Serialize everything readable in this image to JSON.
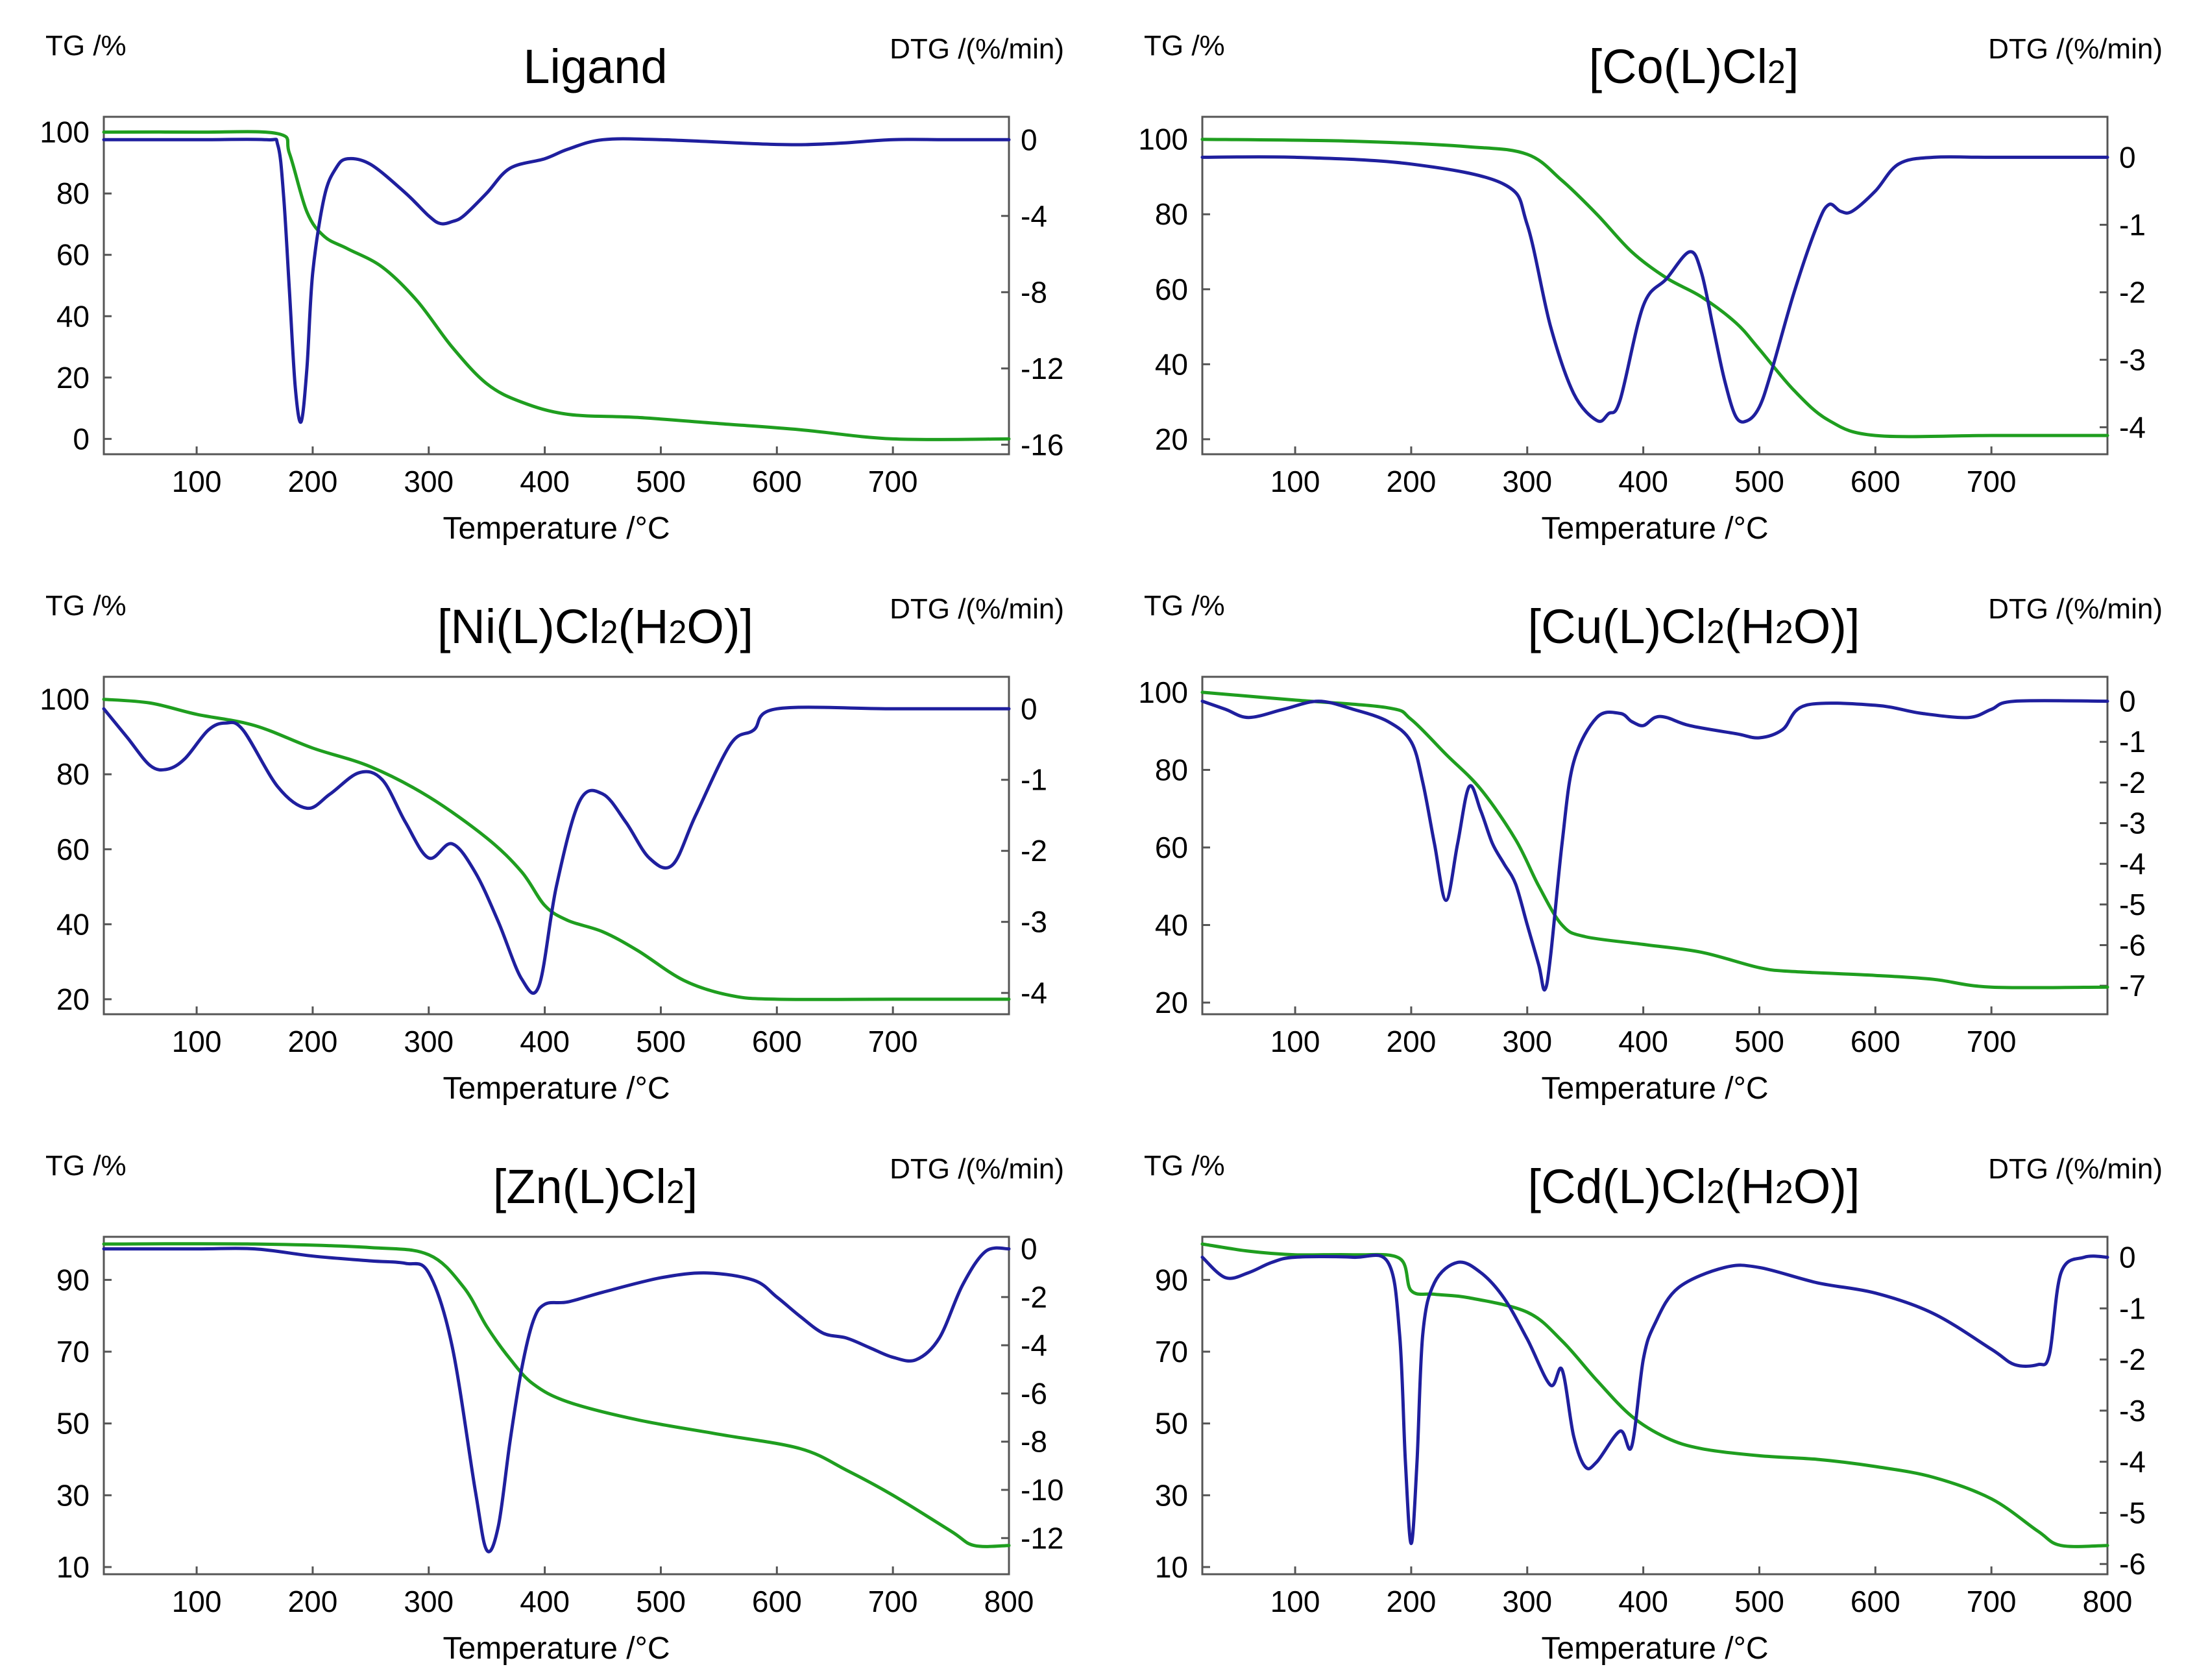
{
  "figure": {
    "x_axis_label": "Temperature /°C",
    "left_axis_label": "TG /%",
    "right_axis_label": "DTG /(%/min)",
    "tg_color": "#1f9e1f",
    "dtg_color": "#1f1f9e",
    "frame_color": "#555555"
  },
  "chart_data": [
    {
      "type": "line",
      "title": "Ligand",
      "title_parts": [
        {
          "text": "Ligand"
        }
      ],
      "xlabel": "Temperature /°C",
      "ylabel": "TG /%",
      "y2label": "DTG /(%/min)",
      "xlim": [
        20,
        800
      ],
      "ylim": [
        -5,
        105
      ],
      "y2lim": [
        -16.5,
        1.2
      ],
      "xticks": [
        100,
        200,
        300,
        400,
        500,
        600,
        700
      ],
      "yticks": [
        0,
        20,
        40,
        60,
        80,
        100
      ],
      "y2ticks": [
        0,
        -4,
        -8,
        -12,
        -16
      ],
      "y2ticklabels": [
        "0",
        "-4",
        "-8",
        "-12",
        "-16"
      ],
      "series": [
        {
          "name": "TG",
          "axis": "left",
          "x": [
            20,
            100,
            170,
            180,
            195,
            210,
            230,
            260,
            290,
            320,
            350,
            380,
            420,
            480,
            550,
            620,
            700,
            800
          ],
          "y": [
            100,
            100,
            99.5,
            93,
            74,
            66,
            62,
            56,
            45,
            30,
            18,
            12,
            8,
            7,
            5,
            3,
            0,
            0
          ]
        },
        {
          "name": "DTG",
          "axis": "right",
          "x": [
            20,
            100,
            160,
            170,
            175,
            180,
            185,
            190,
            195,
            200,
            210,
            220,
            230,
            250,
            280,
            300,
            310,
            320,
            330,
            350,
            370,
            400,
            420,
            450,
            500,
            600,
            650,
            700,
            750,
            800
          ],
          "y": [
            0,
            0,
            0,
            -0.3,
            -3,
            -8,
            -13,
            -14.8,
            -12,
            -7,
            -3,
            -1.5,
            -1,
            -1.3,
            -2.8,
            -4,
            -4.4,
            -4.3,
            -4,
            -2.8,
            -1.5,
            -1,
            -0.5,
            0,
            0,
            -0.25,
            -0.2,
            0,
            0,
            0
          ]
        }
      ]
    },
    {
      "type": "line",
      "title": "[Co(L)Cl2]",
      "title_parts": [
        {
          "text": "[Co(L)Cl"
        },
        {
          "text": "2",
          "sub": true
        },
        {
          "text": "]"
        }
      ],
      "xlabel": "Temperature /°C",
      "ylabel": "TG /%",
      "y2label": "DTG /(%/min)",
      "xlim": [
        20,
        800
      ],
      "ylim": [
        16,
        106
      ],
      "y2lim": [
        -4.4,
        0.6
      ],
      "xticks": [
        100,
        200,
        300,
        400,
        500,
        600,
        700
      ],
      "yticks": [
        20,
        40,
        60,
        80,
        100
      ],
      "y2ticks": [
        0,
        -1,
        -2,
        -3,
        -4
      ],
      "y2ticklabels": [
        "0",
        "-1",
        "-2",
        "-3",
        "-4"
      ],
      "series": [
        {
          "name": "TG",
          "axis": "left",
          "x": [
            20,
            150,
            250,
            300,
            330,
            360,
            390,
            420,
            450,
            480,
            500,
            530,
            560,
            600,
            700,
            800
          ],
          "y": [
            100,
            99.5,
            98,
            96,
            89,
            80,
            70,
            63,
            58,
            51,
            44,
            33,
            25,
            21,
            21,
            21
          ]
        },
        {
          "name": "DTG",
          "axis": "right",
          "x": [
            20,
            100,
            200,
            280,
            300,
            320,
            340,
            360,
            370,
            380,
            400,
            420,
            440,
            450,
            460,
            470,
            480,
            490,
            500,
            510,
            530,
            550,
            560,
            570,
            580,
            600,
            620,
            650,
            700,
            800
          ],
          "y": [
            0,
            0,
            -0.1,
            -0.4,
            -1,
            -2.5,
            -3.5,
            -3.9,
            -3.8,
            -3.6,
            -2.2,
            -1.8,
            -1.4,
            -1.7,
            -2.5,
            -3.3,
            -3.85,
            -3.9,
            -3.7,
            -3.2,
            -2,
            -1,
            -0.7,
            -0.8,
            -0.8,
            -0.5,
            -0.1,
            0,
            0,
            0
          ]
        }
      ]
    },
    {
      "type": "line",
      "title": "[Ni(L)Cl2(H2O)]",
      "title_parts": [
        {
          "text": "[Ni(L)Cl"
        },
        {
          "text": "2",
          "sub": true
        },
        {
          "text": "(H"
        },
        {
          "text": "2",
          "sub": true
        },
        {
          "text": "O)]"
        }
      ],
      "xlabel": "Temperature /°C",
      "ylabel": "TG /%",
      "y2label": "DTG /(%/min)",
      "xlim": [
        20,
        800
      ],
      "ylim": [
        16,
        106
      ],
      "y2lim": [
        -4.3,
        0.45
      ],
      "xticks": [
        100,
        200,
        300,
        400,
        500,
        600,
        700
      ],
      "yticks": [
        20,
        40,
        60,
        80,
        100
      ],
      "y2ticks": [
        0,
        -1,
        -2,
        -3,
        -4
      ],
      "y2ticklabels": [
        "0",
        "-1",
        "-2",
        "-3",
        "-4"
      ],
      "series": [
        {
          "name": "TG",
          "axis": "left",
          "x": [
            20,
            60,
            100,
            150,
            200,
            250,
            300,
            350,
            380,
            400,
            420,
            450,
            480,
            520,
            560,
            600,
            700,
            800
          ],
          "y": [
            100,
            99,
            96,
            93,
            87,
            82,
            74,
            63,
            54,
            45,
            41,
            38,
            33,
            25,
            21,
            20,
            20,
            20
          ]
        },
        {
          "name": "DTG",
          "axis": "right",
          "x": [
            20,
            40,
            60,
            75,
            90,
            110,
            125,
            140,
            170,
            195,
            215,
            240,
            260,
            280,
            300,
            320,
            340,
            360,
            380,
            395,
            410,
            430,
            450,
            470,
            490,
            510,
            530,
            560,
            580,
            600,
            700,
            800
          ],
          "y": [
            0,
            -0.4,
            -0.8,
            -0.85,
            -0.7,
            -0.3,
            -0.2,
            -0.3,
            -1.1,
            -1.4,
            -1.2,
            -0.9,
            -1,
            -1.6,
            -2.1,
            -1.9,
            -2.3,
            -3,
            -3.8,
            -3.9,
            -2.5,
            -1.3,
            -1.2,
            -1.6,
            -2.1,
            -2.2,
            -1.5,
            -0.5,
            -0.3,
            0,
            0,
            0
          ]
        }
      ]
    },
    {
      "type": "line",
      "title": "[Cu(L)Cl2(H2O)]",
      "title_parts": [
        {
          "text": "[Cu(L)Cl"
        },
        {
          "text": "2",
          "sub": true
        },
        {
          "text": "(H"
        },
        {
          "text": "2",
          "sub": true
        },
        {
          "text": "O)]"
        }
      ],
      "xlabel": "Temperature /°C",
      "ylabel": "TG /%",
      "y2label": "DTG /(%/min)",
      "xlim": [
        20,
        800
      ],
      "ylim": [
        17,
        104
      ],
      "y2lim": [
        -7.7,
        0.6
      ],
      "xticks": [
        100,
        200,
        300,
        400,
        500,
        600,
        700
      ],
      "yticks": [
        20,
        40,
        60,
        80,
        100
      ],
      "y2ticks": [
        0,
        -1,
        -2,
        -3,
        -4,
        -5,
        -6,
        -7
      ],
      "y2ticklabels": [
        "0",
        "-1",
        "-2",
        "-3",
        "-4",
        "-5",
        "-6",
        "-7"
      ],
      "series": [
        {
          "name": "TG",
          "axis": "left",
          "x": [
            20,
            100,
            180,
            200,
            230,
            260,
            290,
            310,
            330,
            350,
            400,
            450,
            500,
            530,
            600,
            650,
            700,
            800
          ],
          "y": [
            100,
            98,
            96,
            93,
            84,
            75,
            62,
            50,
            40,
            37,
            35,
            33,
            29,
            28,
            27,
            26,
            24,
            24
          ]
        },
        {
          "name": "DTG",
          "axis": "right",
          "x": [
            20,
            40,
            60,
            90,
            120,
            150,
            180,
            200,
            210,
            220,
            230,
            240,
            250,
            260,
            270,
            280,
            290,
            300,
            310,
            315,
            320,
            330,
            340,
            360,
            380,
            390,
            400,
            410,
            420,
            440,
            480,
            500,
            520,
            540,
            600,
            640,
            680,
            700,
            720,
            800
          ],
          "y": [
            0,
            -0.2,
            -0.4,
            -0.2,
            0,
            -0.2,
            -0.5,
            -1,
            -2,
            -3.5,
            -4.9,
            -3.5,
            -2.1,
            -2.7,
            -3.5,
            -4,
            -4.5,
            -5.5,
            -6.5,
            -7.1,
            -6.3,
            -3.5,
            -1.5,
            -0.4,
            -0.3,
            -0.5,
            -0.6,
            -0.4,
            -0.4,
            -0.6,
            -0.8,
            -0.9,
            -0.7,
            -0.1,
            -0.1,
            -0.3,
            -0.4,
            -0.2,
            0,
            0
          ]
        }
      ]
    },
    {
      "type": "line",
      "title": "[Zn(L)Cl2]",
      "title_parts": [
        {
          "text": "[Zn(L)Cl"
        },
        {
          "text": "2",
          "sub": true
        },
        {
          "text": "]"
        }
      ],
      "xlabel": "Temperature /°C",
      "ylabel": "TG /%",
      "y2label": "DTG /(%/min)",
      "xlim": [
        20,
        800
      ],
      "ylim": [
        8,
        102
      ],
      "y2lim": [
        -13.5,
        0.5
      ],
      "xticks": [
        100,
        200,
        300,
        400,
        500,
        600,
        700,
        800
      ],
      "yticks": [
        10,
        30,
        50,
        70,
        90
      ],
      "y2ticks": [
        0,
        -2,
        -4,
        -6,
        -8,
        -10,
        -12
      ],
      "y2ticklabels": [
        "0",
        "-2",
        "-4",
        "-6",
        "-8",
        "-10",
        "-12"
      ],
      "series": [
        {
          "name": "TG",
          "axis": "left",
          "x": [
            20,
            150,
            250,
            300,
            330,
            350,
            370,
            390,
            420,
            480,
            550,
            620,
            660,
            700,
            750,
            770,
            800
          ],
          "y": [
            100,
            100,
            99,
            97,
            88,
            77,
            68,
            61,
            56,
            51,
            47,
            43,
            37,
            30,
            20,
            16,
            16
          ]
        },
        {
          "name": "DTG",
          "axis": "right",
          "x": [
            20,
            100,
            150,
            200,
            250,
            280,
            300,
            320,
            340,
            350,
            360,
            370,
            380,
            390,
            400,
            420,
            450,
            500,
            540,
            580,
            600,
            620,
            640,
            660,
            680,
            700,
            720,
            740,
            760,
            780,
            800
          ],
          "y": [
            0,
            0,
            0,
            -0.3,
            -0.5,
            -0.6,
            -1,
            -4,
            -10,
            -12.5,
            -11.5,
            -8,
            -5,
            -3,
            -2.3,
            -2.2,
            -1.8,
            -1.2,
            -1,
            -1.3,
            -2,
            -2.8,
            -3.5,
            -3.7,
            -4.1,
            -4.5,
            -4.6,
            -3.7,
            -1.5,
            -0.1,
            0
          ]
        }
      ]
    },
    {
      "type": "line",
      "title": "[Cd(L)Cl2(H2O)]",
      "title_parts": [
        {
          "text": "[Cd(L)Cl"
        },
        {
          "text": "2",
          "sub": true
        },
        {
          "text": "(H"
        },
        {
          "text": "2",
          "sub": true
        },
        {
          "text": "O)]"
        }
      ],
      "xlabel": "Temperature /°C",
      "ylabel": "TG /%",
      "y2label": "DTG /(%/min)",
      "xlim": [
        20,
        800
      ],
      "ylim": [
        8,
        102
      ],
      "y2lim": [
        -6.2,
        0.4
      ],
      "xticks": [
        100,
        200,
        300,
        400,
        500,
        600,
        700,
        800
      ],
      "yticks": [
        10,
        30,
        50,
        70,
        90
      ],
      "y2ticks": [
        0,
        -1,
        -2,
        -3,
        -4,
        -5,
        -6
      ],
      "y2ticklabels": [
        "0",
        "-1",
        "-2",
        "-3",
        "-4",
        "-5",
        "-6"
      ],
      "series": [
        {
          "name": "TG",
          "axis": "left",
          "x": [
            20,
            60,
            100,
            150,
            190,
            200,
            220,
            250,
            300,
            330,
            360,
            390,
            420,
            450,
            500,
            550,
            600,
            650,
            700,
            740,
            760,
            800
          ],
          "y": [
            100,
            98,
            97,
            97,
            96,
            87,
            86,
            85,
            81,
            73,
            62,
            52,
            46,
            43,
            41,
            40,
            38,
            35,
            29,
            20,
            16,
            16
          ]
        },
        {
          "name": "DTG",
          "axis": "right",
          "x": [
            20,
            40,
            60,
            80,
            100,
            150,
            180,
            190,
            195,
            200,
            205,
            210,
            220,
            240,
            260,
            280,
            300,
            320,
            330,
            340,
            350,
            360,
            380,
            390,
            400,
            410,
            430,
            470,
            500,
            550,
            600,
            650,
            700,
            720,
            740,
            750,
            760,
            780,
            800
          ],
          "y": [
            0,
            -0.4,
            -0.3,
            -0.1,
            0,
            0,
            -0.1,
            -1.5,
            -4,
            -5.6,
            -4,
            -1.5,
            -0.5,
            -0.1,
            -0.3,
            -0.8,
            -1.6,
            -2.5,
            -2.2,
            -3.5,
            -4.1,
            -4,
            -3.4,
            -3.7,
            -2,
            -1.3,
            -0.6,
            -0.2,
            -0.2,
            -0.5,
            -0.7,
            -1.1,
            -1.8,
            -2.1,
            -2.1,
            -1.9,
            -0.3,
            0,
            0
          ]
        }
      ]
    }
  ]
}
